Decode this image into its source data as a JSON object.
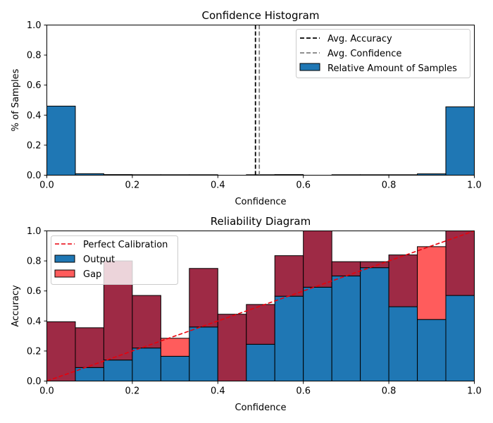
{
  "chart_data": [
    {
      "type": "bar",
      "title": "Confidence Histogram",
      "xlabel": "Confidence",
      "ylabel": "% of Samples",
      "xlim": [
        0,
        1
      ],
      "ylim": [
        0,
        1
      ],
      "xticks": [
        "0.0",
        "0.2",
        "0.4",
        "0.6",
        "0.8",
        "1.0"
      ],
      "yticks": [
        "0.0",
        "0.2",
        "0.4",
        "0.6",
        "0.8",
        "1.0"
      ],
      "bin_edges": [
        0,
        0.0667,
        0.1333,
        0.2,
        0.2667,
        0.3333,
        0.4,
        0.4667,
        0.5333,
        0.6,
        0.6667,
        0.7333,
        0.8,
        0.8667,
        0.9333,
        1.0
      ],
      "values": [
        0.46,
        0.01,
        0.004,
        0.003,
        0.003,
        0.003,
        0.0,
        0.003,
        0.004,
        0.0,
        0.003,
        0.003,
        0.003,
        0.009,
        0.455
      ],
      "avg_accuracy": 0.488,
      "avg_confidence": 0.497,
      "bar_color": "#1f77b4",
      "legend": {
        "position": "top-right",
        "items": [
          {
            "label": "Avg. Accuracy",
            "kind": "line",
            "color": "#000000",
            "dashed": true
          },
          {
            "label": "Avg. Confidence",
            "kind": "line",
            "color": "#808080",
            "dashed": true
          },
          {
            "label": "Relative Amount of Samples",
            "kind": "patch",
            "color": "#1f77b4"
          }
        ]
      }
    },
    {
      "type": "bar",
      "title": "Reliability Diagram",
      "xlabel": "Confidence",
      "ylabel": "Accuracy",
      "xlim": [
        0,
        1
      ],
      "ylim": [
        0,
        1
      ],
      "xticks": [
        "0.0",
        "0.2",
        "0.4",
        "0.6",
        "0.8",
        "1.0"
      ],
      "yticks": [
        "0.0",
        "0.2",
        "0.4",
        "0.6",
        "0.8",
        "1.0"
      ],
      "bin_edges": [
        0,
        0.0667,
        0.1333,
        0.2,
        0.2667,
        0.3333,
        0.4,
        0.4667,
        0.5333,
        0.6,
        0.6667,
        0.7333,
        0.8,
        0.8667,
        0.9333,
        1.0
      ],
      "output": [
        0.0,
        0.09,
        0.14,
        0.22,
        0.165,
        0.36,
        0.0,
        0.245,
        0.565,
        0.625,
        0.7,
        0.755,
        0.495,
        0.41,
        0.57
      ],
      "gap_top": [
        0.395,
        0.355,
        0.8,
        0.57,
        0.285,
        0.75,
        0.445,
        0.51,
        0.835,
        1.0,
        0.795,
        0.795,
        0.84,
        0.895,
        1.0
      ],
      "output_color": "#1f77b4",
      "gap_color": "#ff5c5c",
      "gap_overlay_color": "#9e2a45",
      "legend": {
        "position": "top-left",
        "items": [
          {
            "label": "Perfect Calibration",
            "kind": "line",
            "color": "#e8000b",
            "dashed": true
          },
          {
            "label": "Output",
            "kind": "patch",
            "color": "#1f77b4"
          },
          {
            "label": "Gap",
            "kind": "patch",
            "color": "#ff5c5c"
          }
        ]
      }
    }
  ]
}
